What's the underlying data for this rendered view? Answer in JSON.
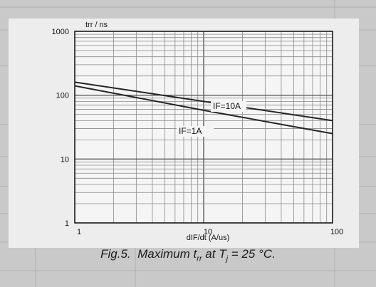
{
  "chart_data": {
    "type": "line",
    "title": "",
    "ylabel": "trr / ns",
    "xlabel": "dIF/dt (A/us)",
    "x_scale": "log",
    "y_scale": "log",
    "xlim": [
      1,
      100
    ],
    "ylim": [
      1,
      1000
    ],
    "x_ticks": [
      "1",
      "10",
      "100"
    ],
    "y_ticks": [
      "1",
      "10",
      "100",
      "1000"
    ],
    "grid": true,
    "legend": "none",
    "series": [
      {
        "name": "IF=10A",
        "x": [
          1,
          10,
          100
        ],
        "y": [
          160,
          80,
          40
        ]
      },
      {
        "name": "IF=1A",
        "x": [
          1,
          10,
          100
        ],
        "y": [
          140,
          58,
          25
        ]
      }
    ],
    "caption": {
      "fig": "Fig.5.",
      "text": "Maximum t",
      "sub1": "rr",
      "mid": " at T",
      "sub2": "j",
      "rest": " = 25 °C."
    }
  }
}
